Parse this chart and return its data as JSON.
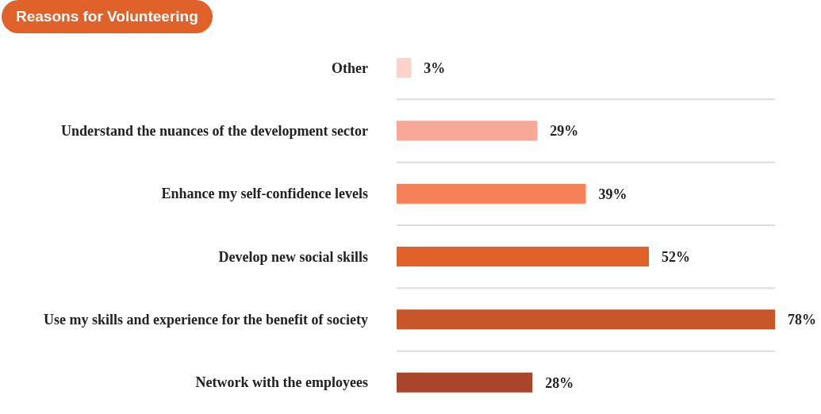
{
  "chart_data": {
    "type": "bar",
    "orientation": "horizontal",
    "title": "Reasons for Volunteering",
    "categories": [
      "Other",
      "Understand the nuances of the development sector",
      "Enhance my self-confidence levels",
      "Develop new social skills",
      "Use my skills and experience for the benefit of society",
      "Network with the employees"
    ],
    "values": [
      3,
      29,
      39,
      52,
      78,
      28
    ],
    "value_labels": [
      "3%",
      "29%",
      "39%",
      "52%",
      "78%",
      "28%"
    ],
    "colors": [
      "#fbd3cb",
      "#f7a896",
      "#f58059",
      "#e0622a",
      "#c7572a",
      "#a8452a"
    ],
    "grid": "y"
  }
}
